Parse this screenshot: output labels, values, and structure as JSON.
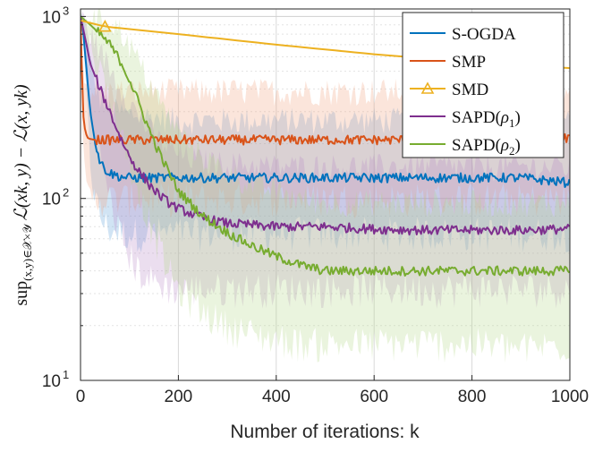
{
  "chart_data": {
    "type": "line",
    "title": "",
    "xlabel": "Number of iterations: k",
    "ylabel": "sup(x,y)∈X×Y L(xk, y) − L(x, yk)",
    "ylabel_parts": {
      "sup": "sup",
      "sub": "(x,y)∈𝒳×𝒴",
      "rest": "ℒ(xk, y) − ℒ(x, yk)"
    },
    "xlim": [
      0,
      1000
    ],
    "ylim": [
      10,
      1100
    ],
    "yscale": "log",
    "grid": true,
    "legend_position": "top-right",
    "x_ticks": [
      0,
      200,
      400,
      600,
      800,
      1000
    ],
    "x_tick_labels": [
      "0",
      "200",
      "400",
      "600",
      "800",
      "1000"
    ],
    "y_ticks": [
      10,
      100,
      1000
    ],
    "y_tick_labels": [
      {
        "base": "10",
        "exp": "1"
      },
      {
        "base": "10",
        "exp": "2"
      },
      {
        "base": "10",
        "exp": "3"
      }
    ],
    "series": [
      {
        "name": "S-OGDA",
        "legend": {
          "text": "S-OGDA"
        },
        "color": "#0072BD",
        "band_color": "#5a9fd6",
        "marker": "none",
        "x": [
          0,
          5,
          10,
          15,
          20,
          30,
          40,
          50,
          60,
          80,
          100,
          150,
          200,
          300,
          400,
          500,
          600,
          700,
          800,
          900,
          1000
        ],
        "y": [
          1000,
          850,
          600,
          420,
          300,
          200,
          160,
          145,
          138,
          132,
          130,
          130,
          130,
          130,
          130,
          130,
          130,
          130,
          130,
          130,
          122
        ],
        "band_low": [
          1000,
          700,
          420,
          250,
          160,
          100,
          80,
          72,
          68,
          66,
          65,
          65,
          65,
          65,
          65,
          65,
          65,
          65,
          65,
          65,
          65
        ],
        "band_high": [
          1000,
          950,
          850,
          700,
          560,
          420,
          360,
          330,
          310,
          300,
          290,
          280,
          270,
          270,
          270,
          270,
          270,
          270,
          270,
          270,
          270
        ]
      },
      {
        "name": "SMP",
        "legend": {
          "text": "SMP"
        },
        "color": "#D95319",
        "band_color": "#f0a27c",
        "marker": "none",
        "x": [
          0,
          3,
          6,
          10,
          15,
          20,
          30,
          50,
          100,
          200,
          300,
          400,
          500,
          600,
          700,
          800,
          900,
          1000
        ],
        "y": [
          1000,
          500,
          280,
          230,
          215,
          212,
          210,
          210,
          210,
          210,
          210,
          210,
          210,
          210,
          210,
          210,
          210,
          215
        ],
        "band_low": [
          1000,
          380,
          160,
          110,
          100,
          100,
          100,
          100,
          100,
          100,
          100,
          100,
          100,
          100,
          100,
          100,
          100,
          100
        ],
        "band_high": [
          1000,
          800,
          500,
          420,
          400,
          390,
          390,
          390,
          390,
          390,
          390,
          390,
          390,
          390,
          390,
          390,
          390,
          390
        ]
      },
      {
        "name": "SMD",
        "legend": {
          "text": "SMD"
        },
        "color": "#EDB120",
        "marker": "triangle",
        "marker_x": [
          50
        ],
        "x": [
          0,
          50,
          200,
          400,
          600,
          800,
          1000
        ],
        "y": [
          950,
          880,
          800,
          700,
          620,
          560,
          520
        ]
      },
      {
        "name": "SAPD(ρ1)",
        "legend": {
          "text": "SAPD(",
          "greek": "ρ",
          "sub": "1",
          "close": ")"
        },
        "color": "#7E2F8E",
        "band_color": "#b88ac4",
        "marker": "none",
        "x": [
          0,
          10,
          20,
          40,
          60,
          80,
          100,
          120,
          140,
          160,
          180,
          200,
          250,
          300,
          400,
          500,
          600,
          700,
          800,
          900,
          1000
        ],
        "y": [
          1000,
          750,
          550,
          400,
          300,
          220,
          170,
          140,
          120,
          105,
          95,
          88,
          78,
          73,
          70,
          70,
          68,
          67,
          67,
          67,
          68
        ],
        "band_low": [
          1000,
          550,
          320,
          170,
          100,
          65,
          48,
          40,
          36,
          34,
          33,
          32,
          32,
          32,
          32,
          32,
          32,
          32,
          32,
          32,
          32
        ],
        "band_high": [
          1000,
          900,
          800,
          650,
          520,
          420,
          340,
          280,
          240,
          210,
          190,
          175,
          160,
          155,
          150,
          150,
          150,
          150,
          150,
          150,
          150
        ]
      },
      {
        "name": "SAPD(ρ2)",
        "legend": {
          "text": "SAPD(",
          "greek": "ρ",
          "sub": "2",
          "close": ")"
        },
        "color": "#77AC30",
        "band_color": "#b3d88a",
        "marker": "none",
        "x": [
          0,
          20,
          40,
          60,
          80,
          100,
          120,
          140,
          160,
          180,
          200,
          250,
          300,
          350,
          400,
          450,
          500,
          600,
          700,
          800,
          900,
          1000
        ],
        "y": [
          1000,
          900,
          800,
          700,
          580,
          450,
          330,
          240,
          180,
          140,
          110,
          80,
          65,
          55,
          48,
          43,
          40,
          40,
          40,
          40,
          40,
          40
        ],
        "band_low": [
          1000,
          700,
          500,
          350,
          240,
          160,
          110,
          75,
          55,
          40,
          32,
          24,
          20,
          18,
          17,
          16,
          16,
          16,
          16,
          16,
          15,
          16
        ],
        "band_high": [
          1000,
          1000,
          1000,
          950,
          850,
          700,
          560,
          440,
          350,
          280,
          230,
          170,
          140,
          120,
          110,
          100,
          95,
          95,
          95,
          95,
          95,
          95
        ]
      }
    ]
  }
}
